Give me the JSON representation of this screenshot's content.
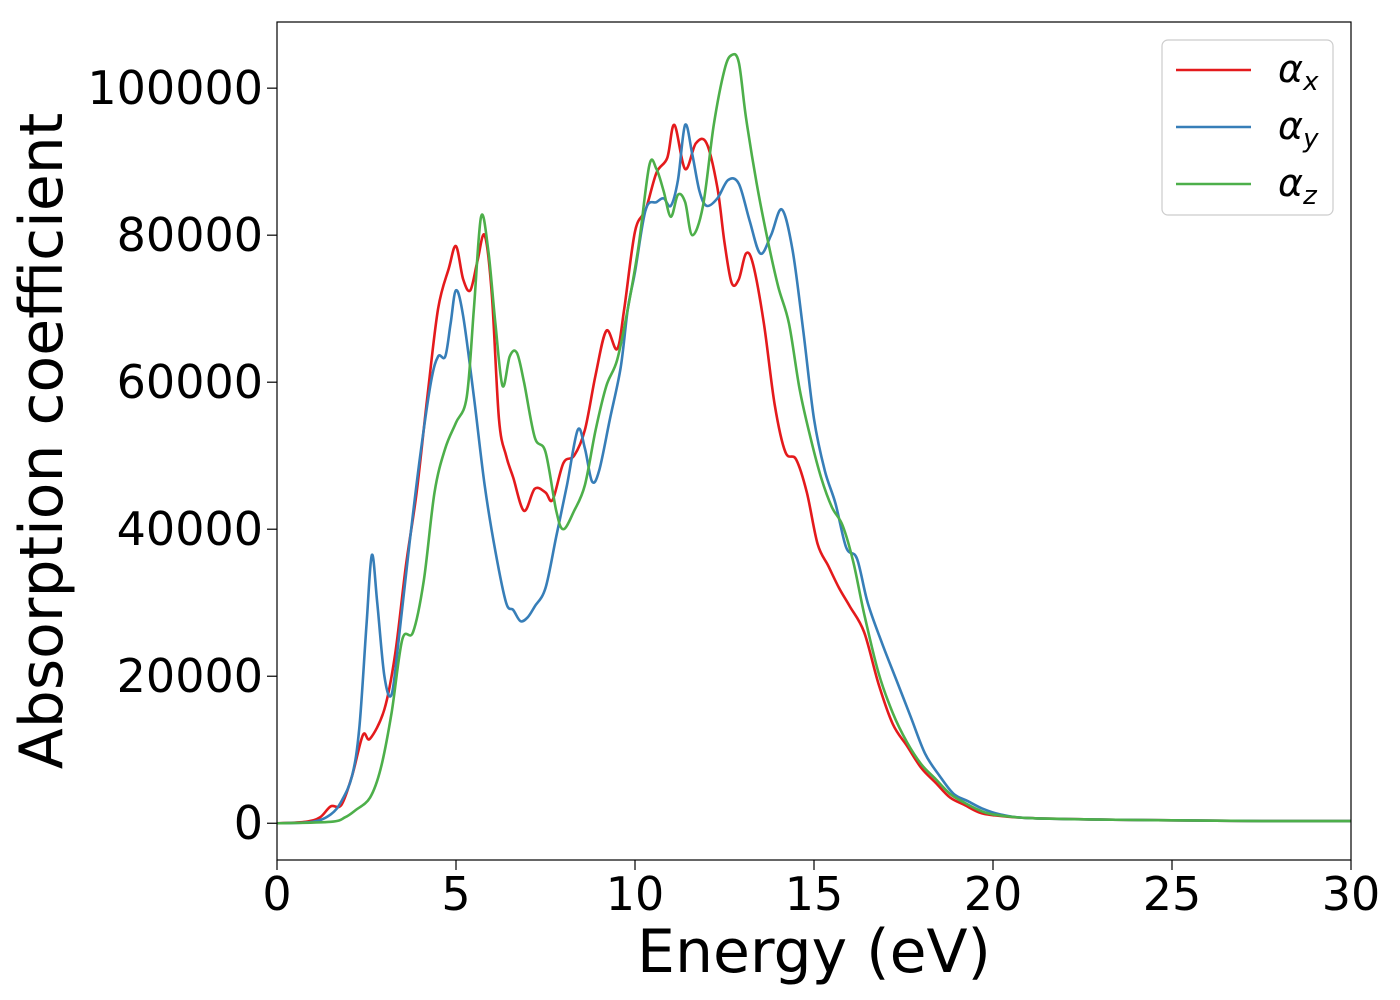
{
  "chart_data": {
    "type": "line",
    "title": "",
    "xlabel": "Energy (eV)",
    "ylabel": "Absorption coefficient",
    "xlim": [
      0,
      30
    ],
    "ylim": [
      -5000,
      109000
    ],
    "xticks": [
      0,
      5,
      10,
      15,
      20,
      25,
      30
    ],
    "xtick_labels": [
      "0",
      "5",
      "10",
      "15",
      "20",
      "25",
      "30"
    ],
    "yticks": [
      0,
      20000,
      40000,
      60000,
      80000,
      100000
    ],
    "ytick_labels": [
      "0",
      "20000",
      "40000",
      "60000",
      "80000",
      "100000"
    ],
    "grid": false,
    "legend_position": "top-right",
    "series": [
      {
        "name": "α",
        "subscript": "x",
        "color": "#e41a1c",
        "points": [
          [
            0,
            0
          ],
          [
            0.8,
            200
          ],
          [
            1.2,
            800
          ],
          [
            1.5,
            2300
          ],
          [
            1.8,
            2500
          ],
          [
            2.1,
            6500
          ],
          [
            2.4,
            12000
          ],
          [
            2.6,
            11500
          ],
          [
            3.0,
            15500
          ],
          [
            3.3,
            23000
          ],
          [
            3.6,
            35000
          ],
          [
            3.9,
            45000
          ],
          [
            4.2,
            58000
          ],
          [
            4.5,
            70000
          ],
          [
            4.8,
            75500
          ],
          [
            5.0,
            78500
          ],
          [
            5.2,
            74000
          ],
          [
            5.4,
            72500
          ],
          [
            5.6,
            76500
          ],
          [
            5.8,
            80000
          ],
          [
            6.0,
            72000
          ],
          [
            6.2,
            55000
          ],
          [
            6.4,
            50000
          ],
          [
            6.6,
            47000
          ],
          [
            6.9,
            42500
          ],
          [
            7.2,
            45500
          ],
          [
            7.5,
            45000
          ],
          [
            7.7,
            44000
          ],
          [
            8.0,
            49000
          ],
          [
            8.3,
            50000
          ],
          [
            8.6,
            53500
          ],
          [
            8.9,
            61000
          ],
          [
            9.2,
            67000
          ],
          [
            9.5,
            64500
          ],
          [
            9.7,
            70000
          ],
          [
            10.0,
            80500
          ],
          [
            10.3,
            83500
          ],
          [
            10.6,
            88500
          ],
          [
            10.9,
            90500
          ],
          [
            11.1,
            95000
          ],
          [
            11.4,
            89000
          ],
          [
            11.7,
            92500
          ],
          [
            12.0,
            92500
          ],
          [
            12.3,
            86500
          ],
          [
            12.5,
            79000
          ],
          [
            12.7,
            73500
          ],
          [
            12.9,
            74000
          ],
          [
            13.1,
            77500
          ],
          [
            13.3,
            76000
          ],
          [
            13.6,
            68000
          ],
          [
            13.9,
            57000
          ],
          [
            14.2,
            50500
          ],
          [
            14.5,
            49500
          ],
          [
            14.8,
            45000
          ],
          [
            15.1,
            38000
          ],
          [
            15.4,
            35000
          ],
          [
            15.7,
            32000
          ],
          [
            16.0,
            29500
          ],
          [
            16.4,
            26000
          ],
          [
            16.8,
            19000
          ],
          [
            17.2,
            13500
          ],
          [
            17.6,
            10500
          ],
          [
            18.0,
            7500
          ],
          [
            18.4,
            5500
          ],
          [
            18.8,
            3500
          ],
          [
            19.2,
            2500
          ],
          [
            19.6,
            1500
          ],
          [
            20.0,
            1100
          ],
          [
            21.0,
            700
          ],
          [
            23.0,
            500
          ],
          [
            25.0,
            400
          ],
          [
            27.5,
            300
          ],
          [
            30,
            300
          ]
        ]
      },
      {
        "name": "α",
        "subscript": "y",
        "color": "#377eb8",
        "points": [
          [
            0,
            0
          ],
          [
            1.0,
            200
          ],
          [
            1.5,
            1200
          ],
          [
            1.8,
            3000
          ],
          [
            2.1,
            6500
          ],
          [
            2.3,
            13000
          ],
          [
            2.5,
            27000
          ],
          [
            2.65,
            36500
          ],
          [
            2.8,
            30000
          ],
          [
            3.0,
            20000
          ],
          [
            3.2,
            17500
          ],
          [
            3.4,
            25000
          ],
          [
            3.7,
            38000
          ],
          [
            4.0,
            50000
          ],
          [
            4.3,
            60000
          ],
          [
            4.5,
            63500
          ],
          [
            4.7,
            63500
          ],
          [
            4.85,
            68000
          ],
          [
            5.0,
            72500
          ],
          [
            5.2,
            69000
          ],
          [
            5.5,
            58000
          ],
          [
            5.8,
            46000
          ],
          [
            6.1,
            37000
          ],
          [
            6.4,
            30000
          ],
          [
            6.6,
            29000
          ],
          [
            6.8,
            27500
          ],
          [
            7.0,
            28000
          ],
          [
            7.2,
            29500
          ],
          [
            7.5,
            32000
          ],
          [
            7.8,
            39000
          ],
          [
            8.1,
            46000
          ],
          [
            8.4,
            53500
          ],
          [
            8.6,
            51000
          ],
          [
            8.8,
            46500
          ],
          [
            9.0,
            48000
          ],
          [
            9.3,
            55000
          ],
          [
            9.6,
            62000
          ],
          [
            9.8,
            70000
          ],
          [
            10.0,
            75000
          ],
          [
            10.3,
            83500
          ],
          [
            10.6,
            84500
          ],
          [
            10.8,
            85000
          ],
          [
            11.0,
            84000
          ],
          [
            11.2,
            87500
          ],
          [
            11.4,
            95000
          ],
          [
            11.6,
            91000
          ],
          [
            11.8,
            86000
          ],
          [
            12.0,
            84000
          ],
          [
            12.3,
            85000
          ],
          [
            12.6,
            87500
          ],
          [
            12.9,
            87000
          ],
          [
            13.2,
            82000
          ],
          [
            13.5,
            77500
          ],
          [
            13.8,
            80000
          ],
          [
            14.1,
            83500
          ],
          [
            14.4,
            78000
          ],
          [
            14.7,
            67000
          ],
          [
            15.0,
            55000
          ],
          [
            15.3,
            48000
          ],
          [
            15.6,
            43500
          ],
          [
            15.9,
            37500
          ],
          [
            16.2,
            36000
          ],
          [
            16.5,
            30000
          ],
          [
            16.9,
            24500
          ],
          [
            17.3,
            19500
          ],
          [
            17.7,
            14500
          ],
          [
            18.1,
            9500
          ],
          [
            18.5,
            6500
          ],
          [
            18.9,
            4000
          ],
          [
            19.3,
            3000
          ],
          [
            19.7,
            2000
          ],
          [
            20.2,
            1200
          ],
          [
            21.0,
            700
          ],
          [
            23.0,
            500
          ],
          [
            25.0,
            400
          ],
          [
            27.5,
            300
          ],
          [
            30,
            300
          ]
        ]
      },
      {
        "name": "α",
        "subscript": "z",
        "color": "#4daf4a",
        "points": [
          [
            0,
            0
          ],
          [
            1.5,
            200
          ],
          [
            1.9,
            800
          ],
          [
            2.2,
            1800
          ],
          [
            2.6,
            3500
          ],
          [
            2.9,
            7500
          ],
          [
            3.2,
            15000
          ],
          [
            3.5,
            25000
          ],
          [
            3.8,
            26000
          ],
          [
            4.1,
            33000
          ],
          [
            4.4,
            45000
          ],
          [
            4.7,
            51000
          ],
          [
            5.0,
            54500
          ],
          [
            5.3,
            58000
          ],
          [
            5.5,
            70000
          ],
          [
            5.7,
            82500
          ],
          [
            5.9,
            78000
          ],
          [
            6.1,
            68000
          ],
          [
            6.3,
            59500
          ],
          [
            6.5,
            63500
          ],
          [
            6.7,
            64000
          ],
          [
            6.9,
            60000
          ],
          [
            7.2,
            52500
          ],
          [
            7.5,
            50500
          ],
          [
            7.8,
            42500
          ],
          [
            8.0,
            40000
          ],
          [
            8.3,
            42500
          ],
          [
            8.6,
            46000
          ],
          [
            8.9,
            53500
          ],
          [
            9.2,
            59500
          ],
          [
            9.5,
            63000
          ],
          [
            9.8,
            70000
          ],
          [
            10.1,
            78500
          ],
          [
            10.4,
            89500
          ],
          [
            10.6,
            89000
          ],
          [
            10.8,
            86000
          ],
          [
            11.0,
            82500
          ],
          [
            11.2,
            85500
          ],
          [
            11.4,
            84500
          ],
          [
            11.6,
            80000
          ],
          [
            11.9,
            84000
          ],
          [
            12.2,
            95000
          ],
          [
            12.5,
            102500
          ],
          [
            12.7,
            104500
          ],
          [
            12.9,
            103500
          ],
          [
            13.1,
            96000
          ],
          [
            13.4,
            87000
          ],
          [
            13.7,
            79500
          ],
          [
            14.0,
            73000
          ],
          [
            14.3,
            68000
          ],
          [
            14.6,
            59000
          ],
          [
            14.9,
            52500
          ],
          [
            15.2,
            47000
          ],
          [
            15.5,
            43000
          ],
          [
            15.8,
            40500
          ],
          [
            16.1,
            35500
          ],
          [
            16.4,
            28500
          ],
          [
            16.8,
            20500
          ],
          [
            17.2,
            15000
          ],
          [
            17.6,
            11000
          ],
          [
            18.0,
            8000
          ],
          [
            18.4,
            6000
          ],
          [
            18.8,
            4000
          ],
          [
            19.2,
            2800
          ],
          [
            19.6,
            1800
          ],
          [
            20.0,
            1200
          ],
          [
            21.0,
            700
          ],
          [
            23.0,
            500
          ],
          [
            25.0,
            400
          ],
          [
            27.5,
            300
          ],
          [
            30,
            300
          ]
        ]
      }
    ]
  }
}
